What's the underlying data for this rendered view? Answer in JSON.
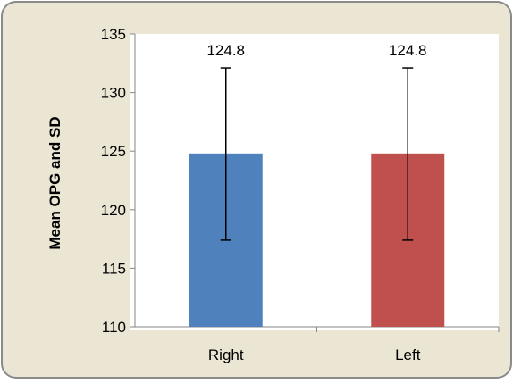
{
  "chart_data": {
    "type": "bar",
    "title": "",
    "xlabel": "",
    "ylabel": "Mean OPG and SD",
    "categories": [
      "Right",
      "Left"
    ],
    "values": [
      124.8,
      124.8
    ],
    "error_upper": [
      132.1,
      132.1
    ],
    "error_lower": [
      117.4,
      117.4
    ],
    "data_labels": [
      "124.8",
      "124.8"
    ],
    "colors": [
      "#4F81BD",
      "#C0504D"
    ],
    "ylim": [
      110,
      135
    ],
    "yticks": [
      "110",
      "115",
      "120",
      "125",
      "130",
      "135"
    ],
    "grid": false,
    "legend": "none"
  },
  "colors": {
    "frame_background": "#EBE5D4",
    "plot_background": "#FFFFFF",
    "frame_border": "#888888"
  }
}
